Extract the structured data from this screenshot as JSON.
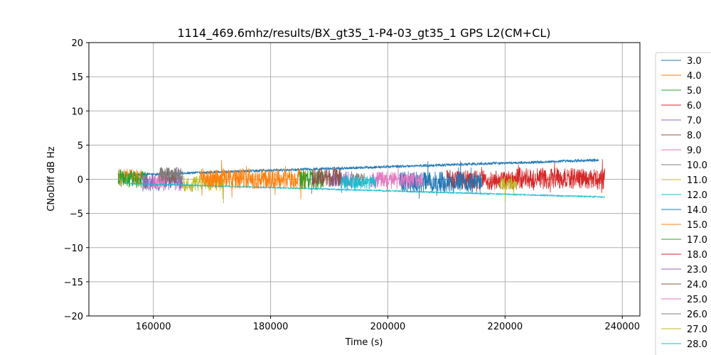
{
  "chart_data": {
    "type": "line",
    "title": "1114_469.6mhz/results/BX_gt35_1-P4-03_gt35_1 GPS L2(CM+CL)",
    "xlabel": "Time (s)",
    "ylabel": "CNoDiff dB Hz",
    "xlim": [
      149000,
      243000
    ],
    "ylim": [
      -20,
      20
    ],
    "xticks": [
      160000,
      180000,
      200000,
      220000,
      240000
    ],
    "yticks": [
      -20,
      -15,
      -10,
      -5,
      0,
      5,
      10,
      15,
      20
    ],
    "grid": true,
    "legend_position": "outside-right",
    "series": [
      {
        "name": "3.0",
        "color": "#1f77b4",
        "x": [
          154000,
          236000
        ],
        "y": [
          0.6,
          2.8
        ],
        "noise": 0.4
      },
      {
        "name": "4.0",
        "color": "#ff7f0e",
        "x": [
          154000,
          158000
        ],
        "y": [
          0.3,
          0.2
        ],
        "noise": 1.3
      },
      {
        "name": "5.0",
        "color": "#2ca02c",
        "x": [
          154000,
          159000
        ],
        "y": [
          0.2,
          -0.1
        ],
        "noise": 1.3
      },
      {
        "name": "6.0",
        "color": "#d62728",
        "x": [
          210000,
          222000
        ],
        "y": [
          0.0,
          -0.2
        ],
        "noise": 1.4
      },
      {
        "name": "7.0",
        "color": "#9467bd",
        "x": [
          158000,
          165000
        ],
        "y": [
          -0.5,
          -0.4
        ],
        "noise": 1.3
      },
      {
        "name": "8.0",
        "color": "#8c564b",
        "x": [
          161000,
          164000
        ],
        "y": [
          0.5,
          0.4
        ],
        "noise": 1.2
      },
      {
        "name": "9.0",
        "color": "#e377c2",
        "x": [
          160000,
          162000
        ],
        "y": [
          -0.5,
          -0.3
        ],
        "noise": 1.0
      },
      {
        "name": "10.0",
        "color": "#7f7f7f",
        "x": [
          161000,
          165000
        ],
        "y": [
          0.6,
          0.5
        ],
        "noise": 1.2
      },
      {
        "name": "11.0",
        "color": "#bcbd22",
        "x": [
          165000,
          172000
        ],
        "y": [
          -0.7,
          -0.5
        ],
        "noise": 1.2
      },
      {
        "name": "12.0",
        "color": "#17becf",
        "x": [
          155000,
          237000
        ],
        "y": [
          -0.6,
          -2.6
        ],
        "noise": 0.2
      },
      {
        "name": "14.0",
        "color": "#1f77b4",
        "x": [
          202000,
          216000
        ],
        "y": [
          -0.3,
          -0.5
        ],
        "noise": 1.5
      },
      {
        "name": "15.0",
        "color": "#ff7f0e",
        "x": [
          168000,
          186000
        ],
        "y": [
          0.2,
          0.0
        ],
        "noise": 1.5
      },
      {
        "name": "17.0",
        "color": "#2ca02c",
        "x": [
          185000,
          189000
        ],
        "y": [
          0.0,
          -0.1
        ],
        "noise": 1.4
      },
      {
        "name": "18.0",
        "color": "#d62728",
        "x": [
          222000,
          237000
        ],
        "y": [
          0.2,
          0.0
        ],
        "noise": 1.6
      },
      {
        "name": "23.0",
        "color": "#9467bd",
        "x": [
          190000,
          194000
        ],
        "y": [
          0.0,
          0.0
        ],
        "noise": 1.2
      },
      {
        "name": "24.0",
        "color": "#8c564b",
        "x": [
          187000,
          192000
        ],
        "y": [
          0.2,
          0.3
        ],
        "noise": 1.4
      },
      {
        "name": "25.0",
        "color": "#e377c2",
        "x": [
          197000,
          206000
        ],
        "y": [
          0.0,
          -0.1
        ],
        "noise": 1.2
      },
      {
        "name": "26.0",
        "color": "#7f7f7f",
        "x": [
          194000,
          196000
        ],
        "y": [
          0.0,
          0.0
        ],
        "noise": 1.0
      },
      {
        "name": "27.0",
        "color": "#bcbd22",
        "x": [
          219000,
          222000
        ],
        "y": [
          -0.5,
          -0.6
        ],
        "noise": 1.0
      },
      {
        "name": "28.0",
        "color": "#17becf",
        "x": [
          192000,
          198000
        ],
        "y": [
          -0.4,
          -0.5
        ],
        "noise": 1.0
      }
    ]
  }
}
